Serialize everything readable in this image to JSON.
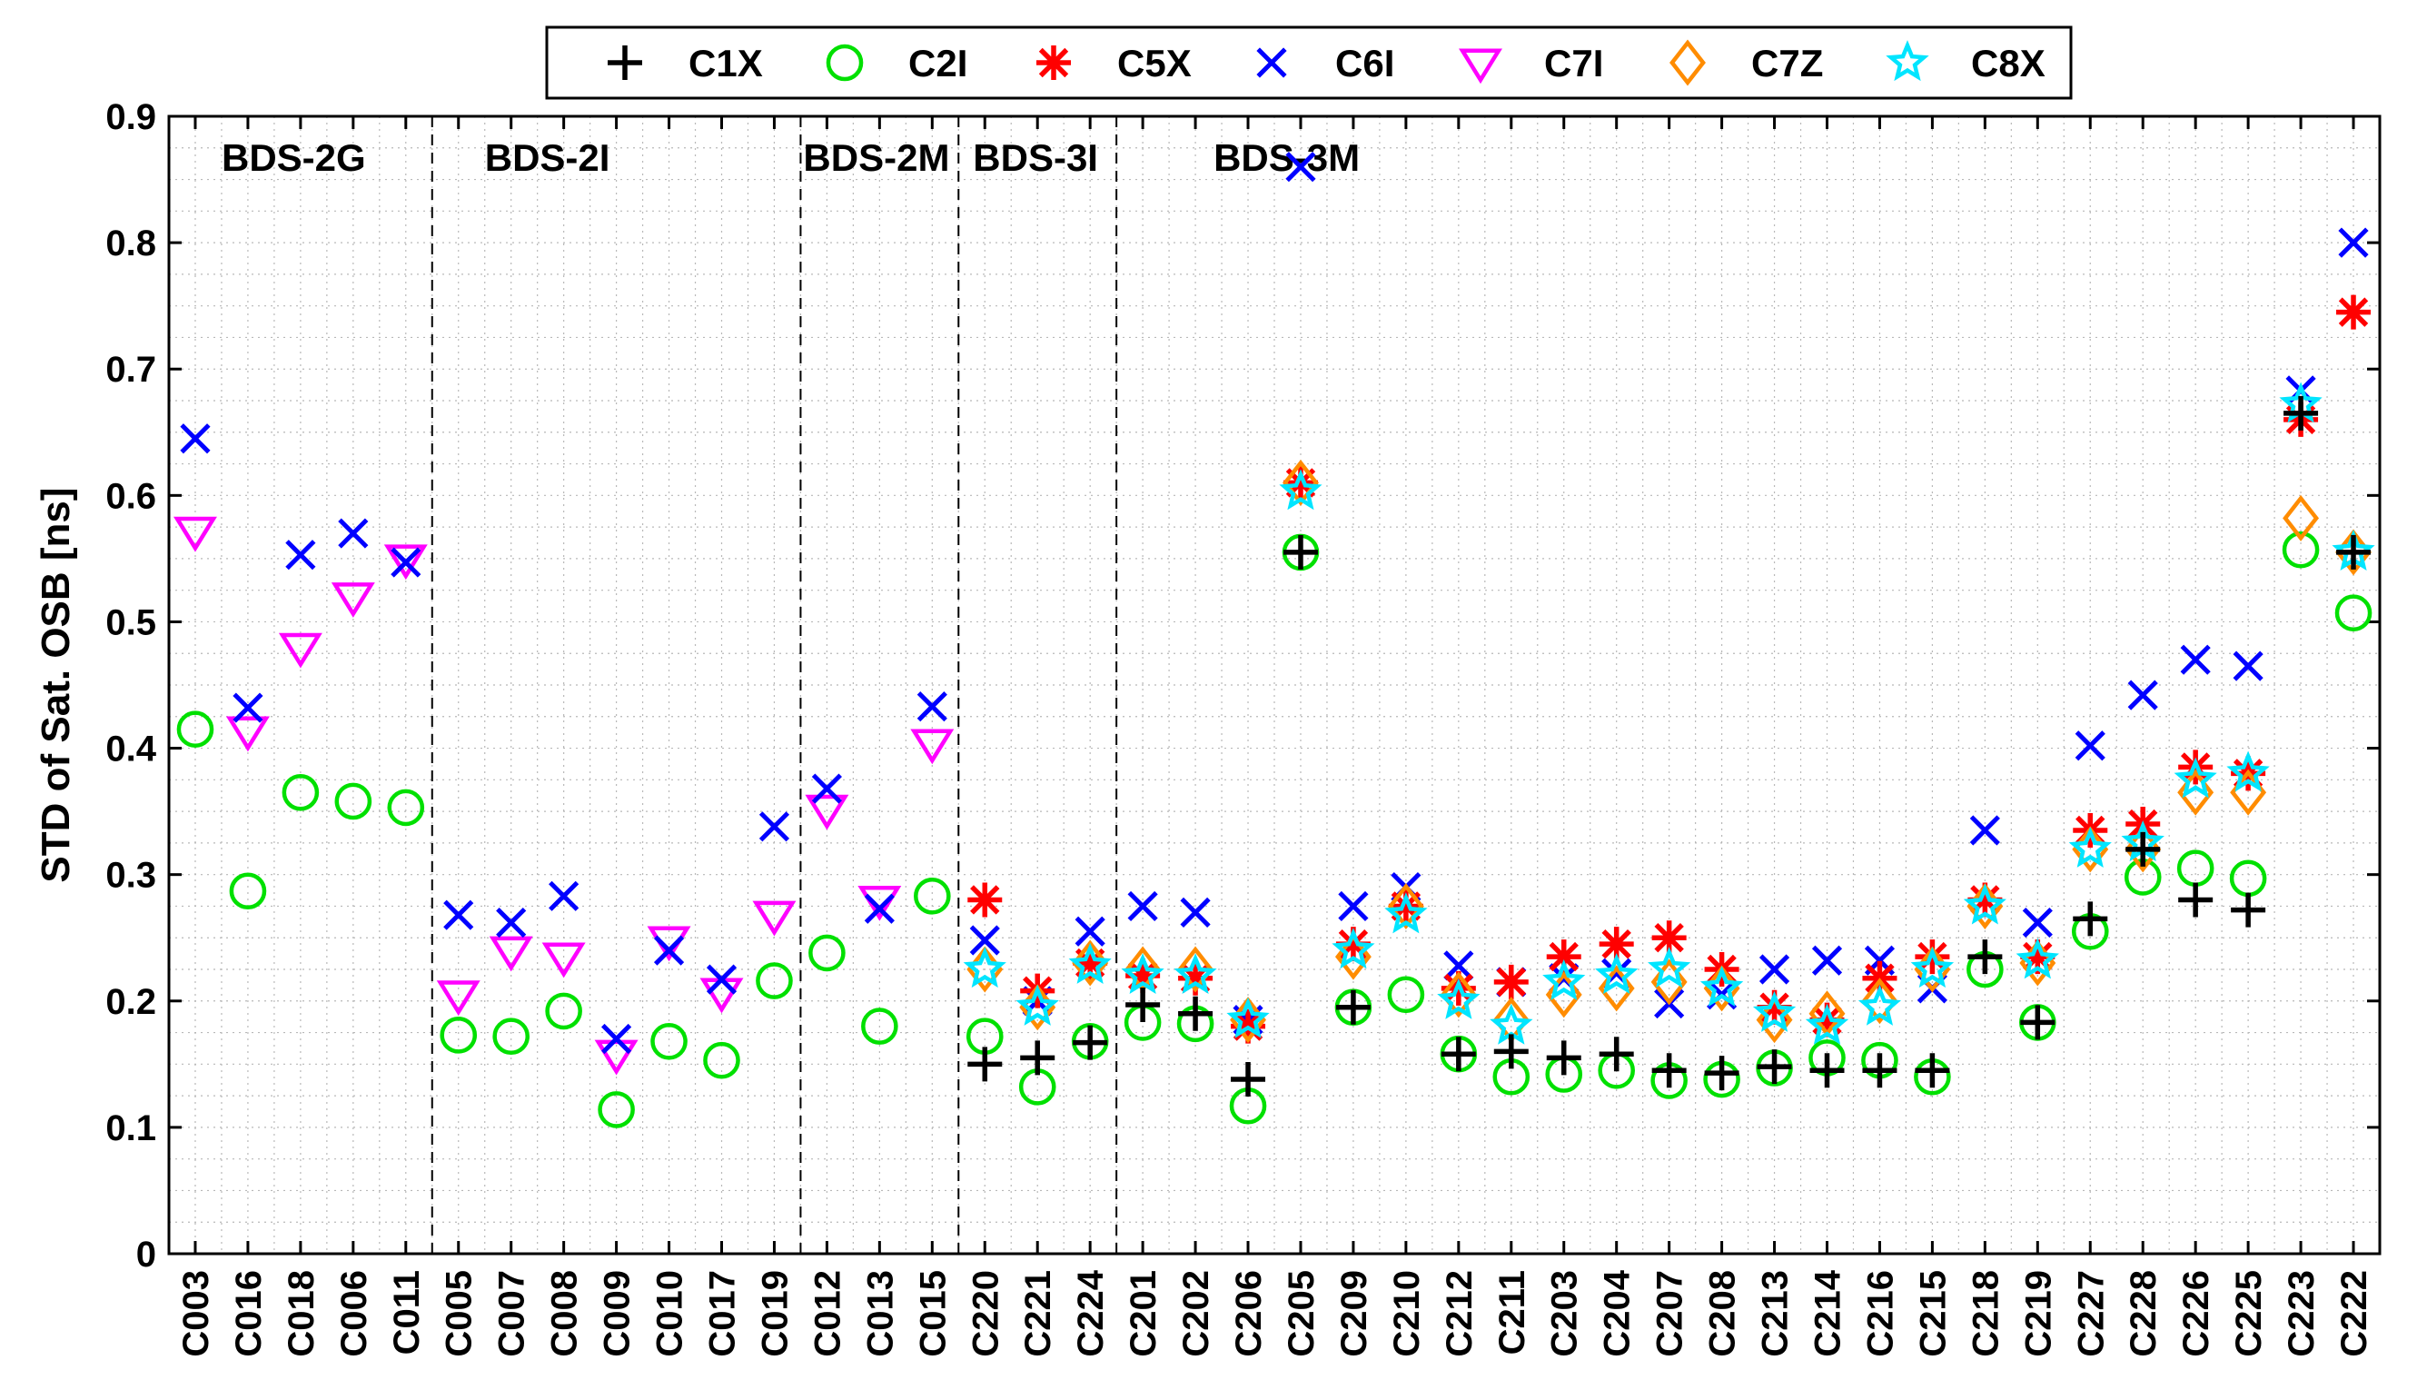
{
  "chart_data": {
    "type": "scatter",
    "ylabel": "STD of Sat. OSB [ns]",
    "xlabel": "",
    "ylim": [
      0,
      0.9
    ],
    "yticks": [
      0,
      0.1,
      0.2,
      0.3,
      0.4,
      0.5,
      0.6,
      0.7,
      0.8,
      0.9
    ],
    "ytick_labels": [
      "0",
      "0.1",
      "0.2",
      "0.3",
      "0.4",
      "0.5",
      "0.6",
      "0.7",
      "0.8",
      "0.9"
    ],
    "grid": true,
    "legend_position": "top-center",
    "categories": [
      "C003",
      "C016",
      "C018",
      "C006",
      "C011",
      "C005",
      "C007",
      "C008",
      "C009",
      "C010",
      "C017",
      "C019",
      "C012",
      "C013",
      "C015",
      "C220",
      "C221",
      "C224",
      "C201",
      "C202",
      "C206",
      "C205",
      "C209",
      "C210",
      "C212",
      "C211",
      "C203",
      "C204",
      "C207",
      "C208",
      "C213",
      "C214",
      "C216",
      "C215",
      "C218",
      "C219",
      "C227",
      "C228",
      "C226",
      "C225",
      "C223",
      "C222"
    ],
    "groups": [
      {
        "label": "BDS-2G",
        "start": 0,
        "end": 4
      },
      {
        "label": "BDS-2I",
        "start": 5,
        "end": 11
      },
      {
        "label": "BDS-2M",
        "start": 12,
        "end": 14
      },
      {
        "label": "BDS-3I",
        "start": 15,
        "end": 17
      },
      {
        "label": "BDS-3M",
        "start": 18,
        "end": 41
      }
    ],
    "series": [
      {
        "name": "C1X",
        "marker": "plus",
        "color": "#000000",
        "values": [
          null,
          null,
          null,
          null,
          null,
          null,
          null,
          null,
          null,
          null,
          null,
          null,
          null,
          null,
          null,
          0.15,
          0.155,
          0.167,
          0.197,
          0.19,
          0.138,
          0.555,
          0.195,
          null,
          0.158,
          0.16,
          0.155,
          0.158,
          0.145,
          0.143,
          0.148,
          0.145,
          0.145,
          0.145,
          0.235,
          0.183,
          0.265,
          0.32,
          0.28,
          0.272,
          0.665,
          0.555
        ]
      },
      {
        "name": "C2I",
        "marker": "circle",
        "color": "#00e000",
        "values": [
          0.415,
          0.287,
          0.365,
          0.358,
          0.353,
          0.173,
          0.172,
          0.192,
          0.114,
          0.168,
          0.153,
          0.216,
          0.238,
          0.18,
          0.283,
          0.172,
          0.132,
          0.168,
          0.183,
          0.182,
          0.117,
          0.555,
          0.195,
          0.205,
          0.158,
          0.14,
          0.142,
          0.145,
          0.137,
          0.138,
          0.147,
          0.155,
          0.153,
          0.14,
          0.225,
          0.183,
          0.255,
          0.298,
          0.305,
          0.297,
          0.557,
          0.507
        ]
      },
      {
        "name": "C5X",
        "marker": "asterisk",
        "color": "#ff0000",
        "values": [
          null,
          null,
          null,
          null,
          null,
          null,
          null,
          null,
          null,
          null,
          null,
          null,
          null,
          null,
          null,
          0.28,
          0.208,
          0.23,
          0.22,
          0.218,
          0.18,
          0.61,
          0.245,
          0.275,
          0.21,
          0.215,
          0.235,
          0.245,
          0.25,
          0.225,
          0.195,
          0.185,
          0.218,
          0.235,
          0.28,
          0.235,
          0.335,
          0.34,
          0.385,
          0.38,
          0.66,
          0.745
        ]
      },
      {
        "name": "C6I",
        "marker": "x",
        "color": "#0000ff",
        "values": [
          0.645,
          0.432,
          0.553,
          0.57,
          0.547,
          0.268,
          0.262,
          0.283,
          0.17,
          0.24,
          0.217,
          0.338,
          0.368,
          0.273,
          0.433,
          0.248,
          0.2,
          0.255,
          0.275,
          0.27,
          0.185,
          0.86,
          0.275,
          0.29,
          0.228,
          0.215,
          0.218,
          0.222,
          0.198,
          0.205,
          0.225,
          0.232,
          0.232,
          0.21,
          0.335,
          0.262,
          0.402,
          0.442,
          0.47,
          0.465,
          0.683,
          0.8
        ]
      },
      {
        "name": "C7I",
        "marker": "triangle-down",
        "color": "#ff00ff",
        "values": [
          0.572,
          0.414,
          0.48,
          0.52,
          0.55,
          0.205,
          0.24,
          0.235,
          0.158,
          0.248,
          0.207,
          0.268,
          0.352,
          0.28,
          0.404,
          null,
          null,
          null,
          null,
          null,
          null,
          null,
          null,
          null,
          null,
          null,
          null,
          null,
          null,
          null,
          null,
          null,
          null,
          null,
          null,
          null,
          null,
          null,
          null,
          null,
          null,
          null
        ]
      },
      {
        "name": "C7Z",
        "marker": "diamond",
        "color": "#ff8c00",
        "values": [
          null,
          null,
          null,
          null,
          null,
          null,
          null,
          null,
          null,
          null,
          null,
          null,
          null,
          null,
          null,
          0.225,
          0.195,
          0.23,
          0.225,
          0.225,
          0.185,
          0.61,
          0.235,
          0.275,
          0.205,
          0.185,
          0.205,
          0.21,
          0.215,
          0.21,
          0.185,
          0.19,
          0.2,
          0.225,
          0.275,
          0.23,
          0.32,
          0.32,
          0.365,
          0.365,
          0.582,
          0.555
        ]
      },
      {
        "name": "C8X",
        "marker": "star",
        "color": "#00e5ff",
        "values": [
          null,
          null,
          null,
          null,
          null,
          null,
          null,
          null,
          null,
          null,
          null,
          null,
          null,
          null,
          null,
          0.225,
          0.195,
          0.228,
          0.22,
          0.22,
          0.185,
          0.603,
          0.24,
          0.268,
          0.2,
          0.18,
          0.215,
          0.22,
          0.225,
          0.21,
          0.19,
          0.18,
          0.195,
          0.225,
          0.275,
          0.232,
          0.32,
          0.325,
          0.375,
          0.38,
          0.672,
          0.555
        ]
      }
    ]
  }
}
